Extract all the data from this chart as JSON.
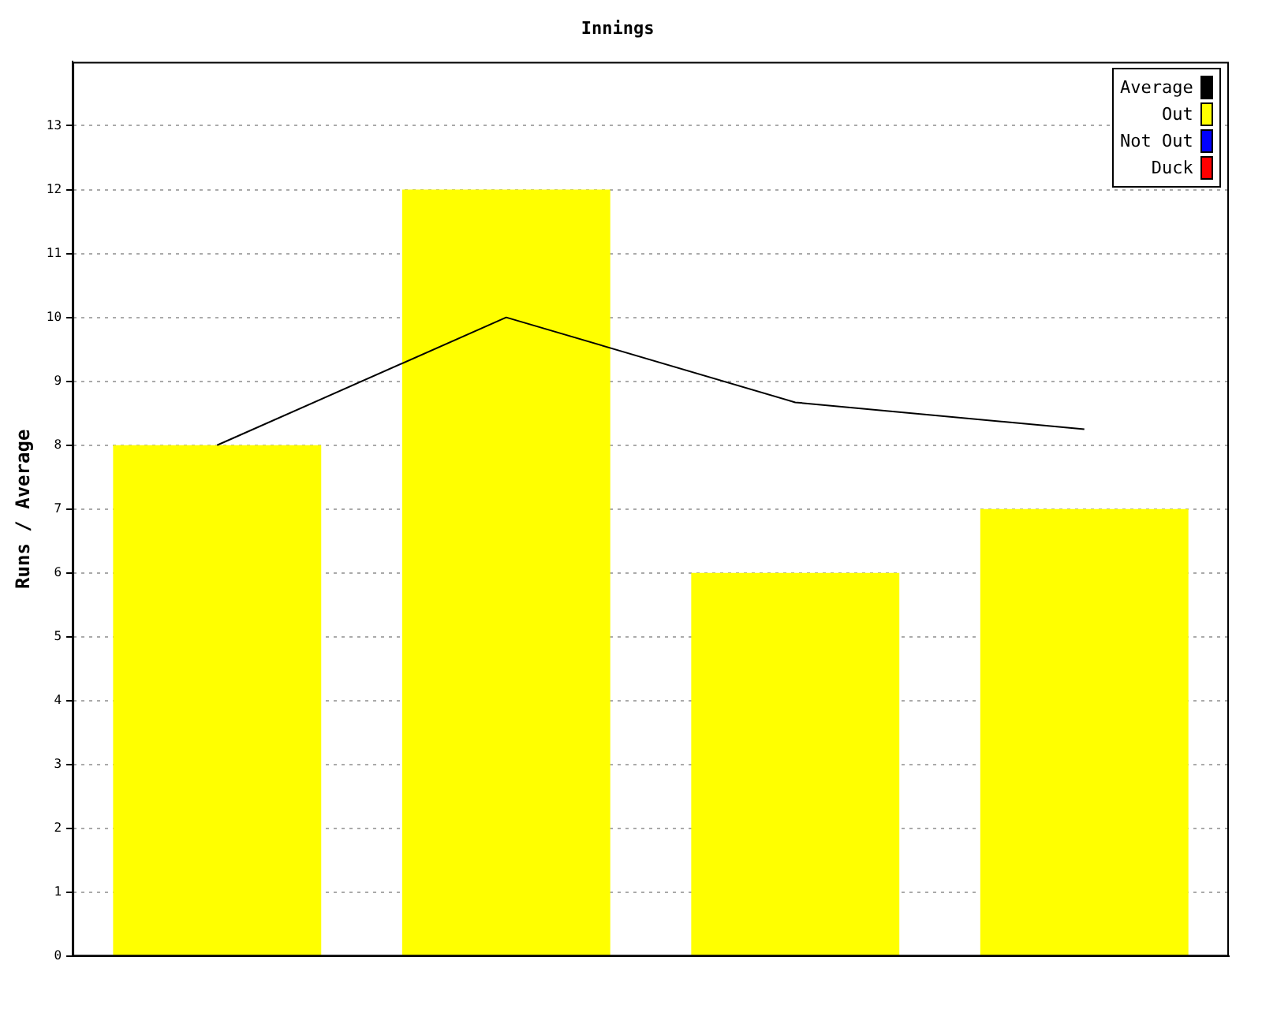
{
  "chart_data": {
    "type": "bar",
    "title": "Innings",
    "ylabel": "Runs / Average",
    "categories": [
      null,
      null,
      null,
      null
    ],
    "stacked": true,
    "series": [
      {
        "name": "Average",
        "type": "line",
        "color": "#000000",
        "values": [
          8,
          10,
          8.67,
          8.25
        ]
      },
      {
        "name": "Out",
        "color": "#ffff00",
        "values": [
          8,
          12,
          6,
          7
        ]
      },
      {
        "name": "Not Out",
        "color": "#0000ff",
        "values": [
          null,
          null,
          null,
          null
        ]
      },
      {
        "name": "Duck",
        "color": "#ff0000",
        "values": [
          null,
          null,
          null,
          null
        ]
      }
    ],
    "ylim": [
      0,
      14
    ],
    "yticks": [
      0,
      1,
      2,
      3,
      4,
      5,
      6,
      7,
      8,
      9,
      10,
      11,
      12,
      13
    ],
    "grid": "y",
    "legend": "top right",
    "marker": "none"
  }
}
